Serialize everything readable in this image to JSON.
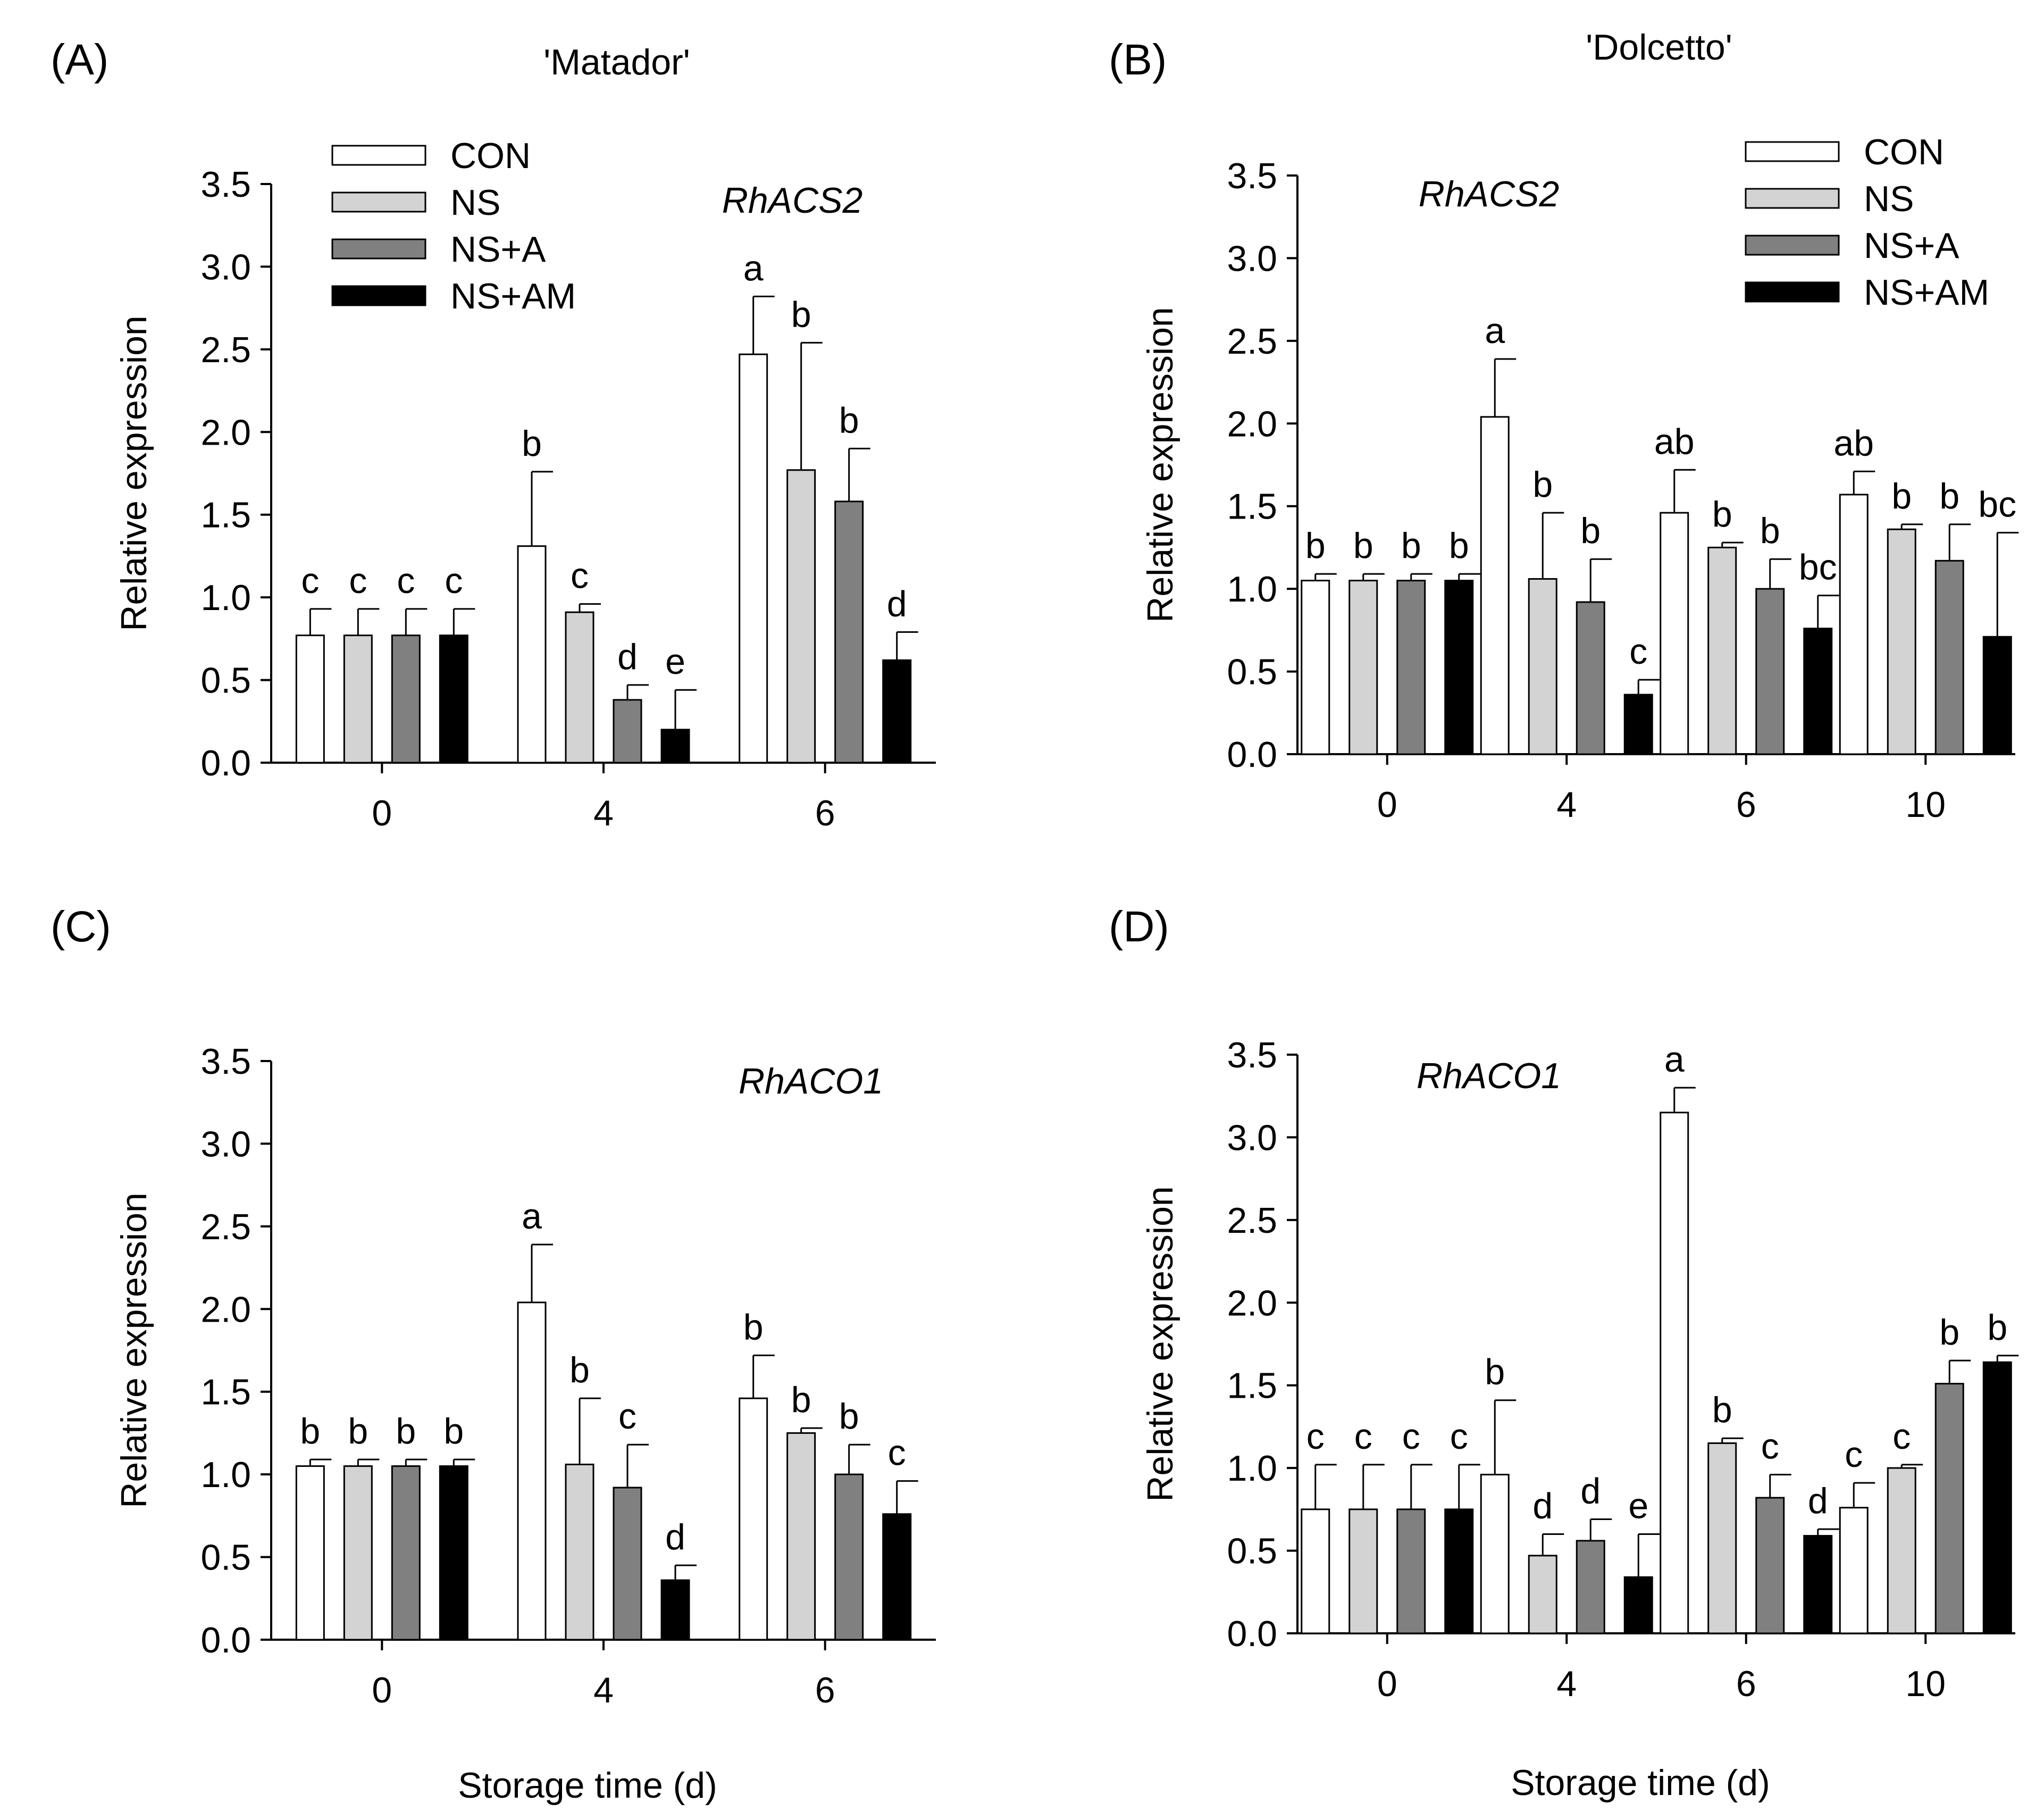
{
  "legend_labels": [
    "CON",
    "NS",
    "NS+A",
    "NS+AM"
  ],
  "colors": {
    "CON": "#ffffff",
    "NS": "#d3d3d3",
    "NS+A": "#808080",
    "NS+AM": "#000000"
  },
  "chart_data": [
    {
      "type": "bar",
      "panel_label": "(A)",
      "cultivar": "'Matador'",
      "gene": "RhACS2",
      "ylabel": "Relative expression",
      "xlabel": "",
      "ylim": [
        0,
        3.5
      ],
      "yticks": [
        "0.0",
        "0.5",
        "1.0",
        "1.5",
        "2.0",
        "2.5",
        "3.0",
        "3.5"
      ],
      "categories": [
        "0",
        "4",
        "6"
      ],
      "legend": "top-left",
      "series": [
        {
          "name": "CON",
          "values": [
            0.77,
            1.31,
            2.47
          ],
          "errors": [
            0.16,
            0.45,
            0.35
          ],
          "letters": [
            "c",
            "b",
            "a"
          ]
        },
        {
          "name": "NS",
          "values": [
            0.77,
            0.91,
            1.77
          ],
          "errors": [
            0.16,
            0.05,
            0.77
          ],
          "letters": [
            "c",
            "c",
            "b"
          ]
        },
        {
          "name": "NS+A",
          "values": [
            0.77,
            0.38,
            1.58
          ],
          "errors": [
            0.16,
            0.09,
            0.32
          ],
          "letters": [
            "c",
            "d",
            "b"
          ]
        },
        {
          "name": "NS+AM",
          "values": [
            0.77,
            0.2,
            0.62
          ],
          "errors": [
            0.16,
            0.24,
            0.17
          ],
          "letters": [
            "c",
            "e",
            "d"
          ]
        }
      ]
    },
    {
      "type": "bar",
      "panel_label": "(B)",
      "cultivar": "'Dolcetto'",
      "gene": "RhACS2",
      "ylabel": "Relative expression",
      "xlabel": "",
      "ylim": [
        0,
        3.5
      ],
      "yticks": [
        "0.0",
        "0.5",
        "1.0",
        "1.5",
        "2.0",
        "2.5",
        "3.0",
        "3.5"
      ],
      "categories": [
        "0",
        "4",
        "6",
        "10"
      ],
      "legend": "top-right",
      "series": [
        {
          "name": "CON",
          "values": [
            1.05,
            2.04,
            1.46,
            1.57
          ],
          "errors": [
            0.04,
            0.35,
            0.26,
            0.14
          ],
          "letters": [
            "b",
            "a",
            "ab",
            "ab"
          ]
        },
        {
          "name": "NS",
          "values": [
            1.05,
            1.06,
            1.25,
            1.36
          ],
          "errors": [
            0.04,
            0.4,
            0.03,
            0.03
          ],
          "letters": [
            "b",
            "b",
            "b",
            "b"
          ]
        },
        {
          "name": "NS+A",
          "values": [
            1.05,
            0.92,
            1.0,
            1.17
          ],
          "errors": [
            0.04,
            0.26,
            0.18,
            0.22
          ],
          "letters": [
            "b",
            "b",
            "b",
            "b"
          ]
        },
        {
          "name": "NS+AM",
          "values": [
            1.05,
            0.36,
            0.76,
            0.71
          ],
          "errors": [
            0.04,
            0.09,
            0.2,
            0.63
          ],
          "letters": [
            "b",
            "c",
            "bc",
            "bc"
          ]
        }
      ]
    },
    {
      "type": "bar",
      "panel_label": "(C)",
      "cultivar": "",
      "gene": "RhACO1",
      "ylabel": "Relative expression",
      "xlabel": "Storage time (d)",
      "ylim": [
        0,
        3.5
      ],
      "yticks": [
        "0.0",
        "0.5",
        "1.0",
        "1.5",
        "2.0",
        "2.5",
        "3.0",
        "3.5"
      ],
      "categories": [
        "0",
        "4",
        "6"
      ],
      "legend": "none",
      "series": [
        {
          "name": "CON",
          "values": [
            1.05,
            2.04,
            1.46
          ],
          "errors": [
            0.04,
            0.35,
            0.26
          ],
          "letters": [
            "b",
            "a",
            "b"
          ]
        },
        {
          "name": "NS",
          "values": [
            1.05,
            1.06,
            1.25
          ],
          "errors": [
            0.04,
            0.4,
            0.03
          ],
          "letters": [
            "b",
            "b",
            "b"
          ]
        },
        {
          "name": "NS+A",
          "values": [
            1.05,
            0.92,
            1.0
          ],
          "errors": [
            0.04,
            0.26,
            0.18
          ],
          "letters": [
            "b",
            "c",
            "b"
          ]
        },
        {
          "name": "NS+AM",
          "values": [
            1.05,
            0.36,
            0.76
          ],
          "errors": [
            0.04,
            0.09,
            0.2
          ],
          "letters": [
            "b",
            "d",
            "c"
          ]
        }
      ]
    },
    {
      "type": "bar",
      "panel_label": "(D)",
      "cultivar": "",
      "gene": "RhACO1",
      "ylabel": "Relative expression",
      "xlabel": "Storage time (d)",
      "ylim": [
        0,
        3.5
      ],
      "yticks": [
        "0.0",
        "0.5",
        "1.0",
        "1.5",
        "2.0",
        "2.5",
        "3.0",
        "3.5"
      ],
      "categories": [
        "0",
        "4",
        "6",
        "10"
      ],
      "legend": "none",
      "series": [
        {
          "name": "CON",
          "values": [
            0.75,
            0.96,
            3.15,
            0.76
          ],
          "errors": [
            0.27,
            0.45,
            0.15,
            0.15
          ],
          "letters": [
            "c",
            "b",
            "a",
            "c"
          ]
        },
        {
          "name": "NS",
          "values": [
            0.75,
            0.47,
            1.15,
            1.0
          ],
          "errors": [
            0.27,
            0.13,
            0.03,
            0.02
          ],
          "letters": [
            "c",
            "d",
            "b",
            "c"
          ]
        },
        {
          "name": "NS+A",
          "values": [
            0.75,
            0.56,
            0.82,
            1.51
          ],
          "errors": [
            0.27,
            0.13,
            0.14,
            0.14
          ],
          "letters": [
            "c",
            "d",
            "c",
            "b"
          ]
        },
        {
          "name": "NS+AM",
          "values": [
            0.75,
            0.34,
            0.59,
            1.64
          ],
          "errors": [
            0.27,
            0.26,
            0.04,
            0.04
          ],
          "letters": [
            "c",
            "e",
            "d",
            "b"
          ]
        }
      ]
    }
  ]
}
